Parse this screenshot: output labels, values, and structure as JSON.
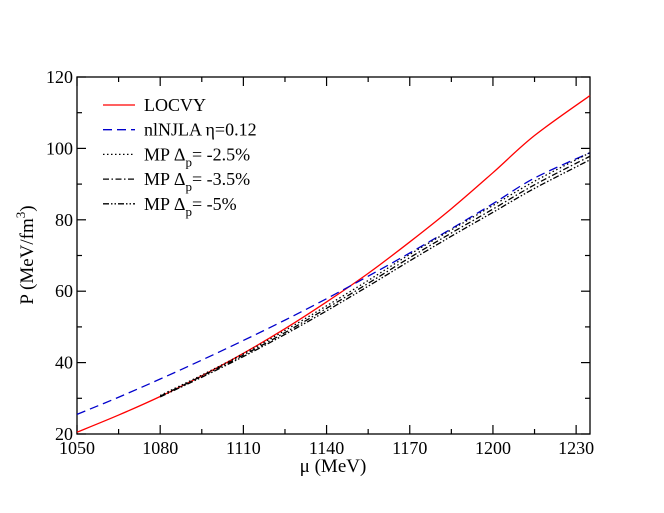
{
  "chart_data": {
    "type": "line",
    "xlabel": {
      "main": "μ (MeV)"
    },
    "ylabel": {
      "main": "P (MeV/fm",
      "sup": "3",
      "close": ")"
    },
    "xlim": [
      1050,
      1235
    ],
    "ylim": [
      20,
      120
    ],
    "xticks": [
      1050,
      1080,
      1110,
      1140,
      1170,
      1200,
      1230
    ],
    "yticks": [
      20,
      40,
      60,
      80,
      100,
      120
    ],
    "xtick_labels": [
      "1050",
      "1080",
      "1110",
      "1140",
      "1170",
      "1200",
      "1230"
    ],
    "ytick_labels": [
      "20",
      "40",
      "60",
      "80",
      "100",
      "120"
    ],
    "grid": false,
    "legend_position": "top-left",
    "series": [
      {
        "name": "LOCVY",
        "label": {
          "main": "LOCVY",
          "sub": "",
          "tail": ""
        },
        "color": "#ff0000",
        "dash": "",
        "x": [
          1050,
          1065,
          1080,
          1095,
          1110,
          1125,
          1140,
          1155,
          1170,
          1185,
          1200,
          1215,
          1235
        ],
        "y": [
          20.5,
          25.3,
          30.5,
          36.3,
          42.6,
          49.5,
          57.0,
          65.0,
          73.8,
          83.1,
          93.2,
          103.6,
          114.8
        ]
      },
      {
        "name": "nlNJLA η=0.12",
        "label": {
          "main": "nlNJLA η=0.12",
          "sub": "",
          "tail": ""
        },
        "color": "#0000cc",
        "dash": "9,5",
        "x": [
          1050,
          1065,
          1080,
          1095,
          1110,
          1125,
          1140,
          1155,
          1170,
          1185,
          1200,
          1215,
          1235
        ],
        "y": [
          25.5,
          30.3,
          35.4,
          40.7,
          46.2,
          51.9,
          57.9,
          64.2,
          70.7,
          77.5,
          84.5,
          91.7,
          98.8
        ]
      },
      {
        "name": "MP Δp= -2.5%",
        "label": {
          "main": "MP Δ",
          "sub": "p",
          "tail": "= -2.5%"
        },
        "color": "#000000",
        "dash": "1.5,2.5",
        "x": [
          1080,
          1095,
          1110,
          1125,
          1140,
          1155,
          1170,
          1185,
          1200,
          1215,
          1235
        ],
        "y": [
          30.8,
          36.5,
          42.5,
          49.0,
          55.9,
          63.0,
          70.3,
          77.2,
          84.0,
          90.8,
          98.8
        ]
      },
      {
        "name": "MP Δp= -3.5%",
        "label": {
          "main": "MP Δ",
          "sub": "p",
          "tail": "= -3.5%"
        },
        "color": "#000000",
        "dash": "6,2.5,1.5,2.5",
        "x": [
          1080,
          1095,
          1110,
          1125,
          1140,
          1155,
          1170,
          1185,
          1200,
          1215,
          1235
        ],
        "y": [
          30.6,
          36.2,
          42.1,
          48.4,
          55.2,
          62.2,
          69.4,
          76.3,
          83.0,
          89.8,
          97.8
        ]
      },
      {
        "name": "MP Δp= -5%",
        "label": {
          "main": "MP Δ",
          "sub": "p",
          "tail": "= -5%"
        },
        "color": "#000000",
        "dash": "6,2,1.5,2,1.5,2",
        "x": [
          1080,
          1095,
          1110,
          1125,
          1140,
          1155,
          1170,
          1185,
          1200,
          1215,
          1235
        ],
        "y": [
          30.4,
          35.9,
          41.7,
          47.9,
          54.5,
          61.4,
          68.5,
          75.4,
          82.1,
          88.8,
          96.8
        ]
      }
    ]
  }
}
